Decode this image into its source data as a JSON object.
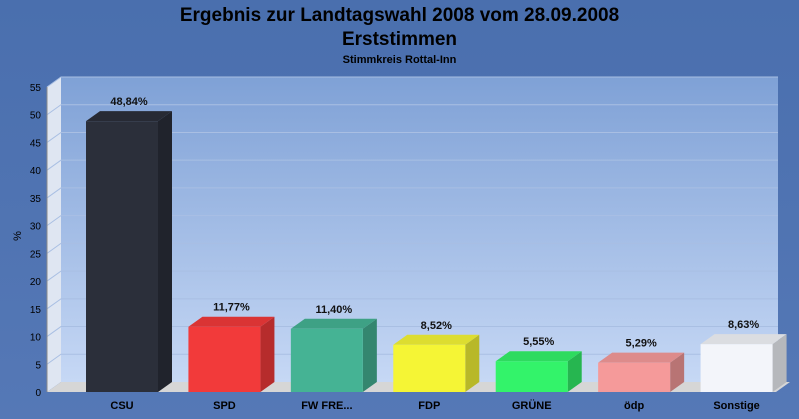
{
  "chart_data": {
    "type": "bar",
    "title": "Ergebnis zur Landtagswahl 2008 vom 28.09.2008",
    "title2": "Erststimmen",
    "subtitle": "Stimmkreis Rottal-Inn",
    "ylabel": "%",
    "ylim": [
      0,
      55
    ],
    "yticks": [
      0,
      5,
      10,
      15,
      20,
      25,
      30,
      35,
      40,
      45,
      50,
      55
    ],
    "grid": true,
    "categories": [
      "CSU",
      "SPD",
      "FW FRE...",
      "FDP",
      "GRÜNE",
      "ödp",
      "Sonstige"
    ],
    "values": [
      48.84,
      11.77,
      11.4,
      8.52,
      5.55,
      5.29,
      8.63
    ],
    "labels": [
      "48,84%",
      "11,77%",
      "11,40%",
      "8,52%",
      "5,55%",
      "5,29%",
      "8,63%"
    ],
    "colors": [
      "#2b2f3a",
      "#f23a3a",
      "#45b394",
      "#f5f535",
      "#33f36a",
      "#f59a9a",
      "#f3f5fa"
    ]
  }
}
